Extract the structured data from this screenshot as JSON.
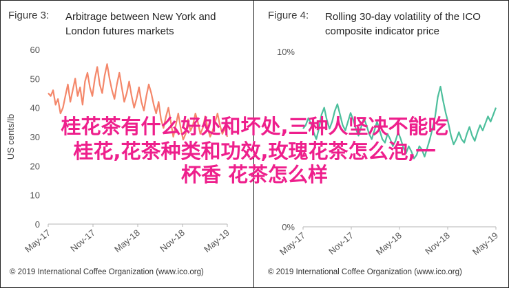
{
  "panels": {
    "left": {
      "figure_label": "Figure 3:",
      "title_line1": "Arbitrage between New York and",
      "title_line2": "London futures markets",
      "copyright": "© 2019 International Coffee Organization (www.ico.org)"
    },
    "right": {
      "figure_label": "Figure 4:",
      "title_line1": "Rolling 30-day volatility of the ICO",
      "title_line2": "composite indicator price",
      "copyright": "© 2019 International Coffee Organization (www.ico.org)"
    }
  },
  "overlay": {
    "line1": "桂花茶有什么好处和坏处,三种人坚决不能吃",
    "line2": "桂花,花茶种类和功效,玫瑰花茶怎么泡,一",
    "line3": "杯香  花茶怎么样"
  },
  "colors": {
    "left_series": "#f4876a",
    "right_series": "#4dbf9c",
    "overlay_text": "#ee1f8c"
  },
  "chart_data": [
    {
      "type": "line",
      "title": "Arbitrage between New York and London futures markets",
      "ylabel": "US cents/lb",
      "ylim": [
        0,
        60
      ],
      "yticks": [
        0,
        10,
        20,
        30,
        40,
        50,
        60
      ],
      "xticks": [
        "May-17",
        "Nov-17",
        "May-18",
        "Nov-18",
        "May-19"
      ],
      "grid": false,
      "series": [
        {
          "x_start": "May-17",
          "x_end": "May-19",
          "values": [
            45,
            44,
            46,
            41,
            43,
            38,
            40,
            44,
            48,
            42,
            46,
            50,
            44,
            47,
            41,
            49,
            52,
            47,
            44,
            50,
            54,
            48,
            45,
            51,
            55,
            50,
            46,
            43,
            48,
            52,
            47,
            42,
            45,
            49,
            44,
            40,
            43,
            47,
            42,
            39,
            44,
            48,
            45,
            41,
            38,
            42,
            36,
            33,
            37,
            40,
            35,
            30,
            34,
            38,
            33,
            29,
            31,
            36,
            32,
            34,
            38,
            35,
            31,
            33,
            37,
            33,
            30,
            32,
            35,
            38,
            34,
            31,
            33,
            30
          ]
        }
      ]
    },
    {
      "type": "line",
      "title": "Rolling 30-day volatility of the ICO composite indicator price",
      "ylim": [
        0,
        10
      ],
      "yticks": [
        "0%",
        "10%"
      ],
      "xticks": [
        "May-17",
        "Nov-17",
        "May-18",
        "Nov-18",
        "May-19"
      ],
      "grid": false,
      "series": [
        {
          "x_start": "May-17",
          "x_end": "May-19",
          "values": [
            5.6,
            5.8,
            6.2,
            5.9,
            5.4,
            5.0,
            5.6,
            6.4,
            6.8,
            6.1,
            5.6,
            6.0,
            6.6,
            7.0,
            6.4,
            5.8,
            5.5,
            6.0,
            6.5,
            6.1,
            5.6,
            5.2,
            5.7,
            6.2,
            5.8,
            5.3,
            5.0,
            5.5,
            6.0,
            5.5,
            5.0,
            4.8,
            5.3,
            5.0,
            4.6,
            4.9,
            5.4,
            5.0,
            4.5,
            4.2,
            4.6,
            4.3,
            3.9,
            4.1,
            4.6,
            4.4,
            4.0,
            4.5,
            5.0,
            5.6,
            6.3,
            7.4,
            8.0,
            7.2,
            6.5,
            5.9,
            5.2,
            4.7,
            5.0,
            5.4,
            5.0,
            4.8,
            5.3,
            5.7,
            5.2,
            4.9,
            5.4,
            5.8,
            5.5,
            5.9,
            6.3,
            6.0,
            6.4,
            6.8
          ]
        }
      ]
    }
  ]
}
